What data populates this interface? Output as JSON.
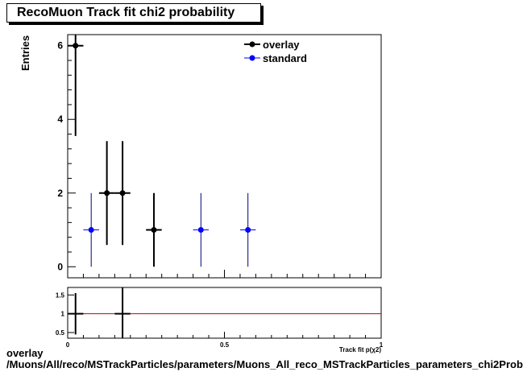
{
  "chart_data": [
    {
      "type": "scatter",
      "title": "RecoMuon Track fit chi2 probability",
      "ylabel": "Entries",
      "xlabel": "Track fit p(χ2)",
      "xlim": [
        0,
        1
      ],
      "ylim": [
        -0.3,
        6.3
      ],
      "yticks": [
        0,
        2,
        4,
        6
      ],
      "legend": "top-right",
      "series": [
        {
          "name": "overlay",
          "color": "#000000",
          "points": [
            {
              "x": 0.025,
              "y": 6,
              "xerr": 0.025,
              "ylo": 3.55,
              "yhi": 6.3
            },
            {
              "x": 0.125,
              "y": 2,
              "xerr": 0.025,
              "ylo": 0.59,
              "yhi": 3.41
            },
            {
              "x": 0.175,
              "y": 2,
              "xerr": 0.025,
              "ylo": 0.59,
              "yhi": 3.41
            },
            {
              "x": 0.275,
              "y": 1,
              "xerr": 0.025,
              "ylo": 0,
              "yhi": 2
            }
          ]
        },
        {
          "name": "standard",
          "color": "#0000ff",
          "points": [
            {
              "x": 0.075,
              "y": 1,
              "xerr": 0.025,
              "ylo": 0,
              "yhi": 2
            },
            {
              "x": 0.425,
              "y": 1,
              "xerr": 0.025,
              "ylo": 0,
              "yhi": 2
            },
            {
              "x": 0.575,
              "y": 1,
              "xerr": 0.025,
              "ylo": 0,
              "yhi": 2
            }
          ]
        }
      ]
    },
    {
      "type": "scatter",
      "xlim": [
        0,
        1
      ],
      "ylim": [
        0.35,
        1.7
      ],
      "yticks": [
        0.5,
        1,
        1.5
      ],
      "xticks": [
        0,
        0.5,
        1
      ],
      "xtick_labels": [
        "0",
        "0.5",
        "1"
      ],
      "xlabel": "Track fit p(χ2)",
      "reference_line": {
        "y": 1,
        "color": "#cc0000"
      },
      "points": [
        {
          "x": 0.025,
          "y": 1,
          "xerr": 0.025,
          "ylo": 0.45,
          "yhi": 1.55
        },
        {
          "x": 0.175,
          "y": 1,
          "xerr": 0.025,
          "ylo": 0.35,
          "yhi": 1.7
        }
      ]
    }
  ],
  "footer": {
    "line1": "overlay",
    "line2": "/Muons/All/reco/MSTrackParticles/parameters/Muons_All_reco_MSTrackParticles_parameters_chi2Prob"
  }
}
